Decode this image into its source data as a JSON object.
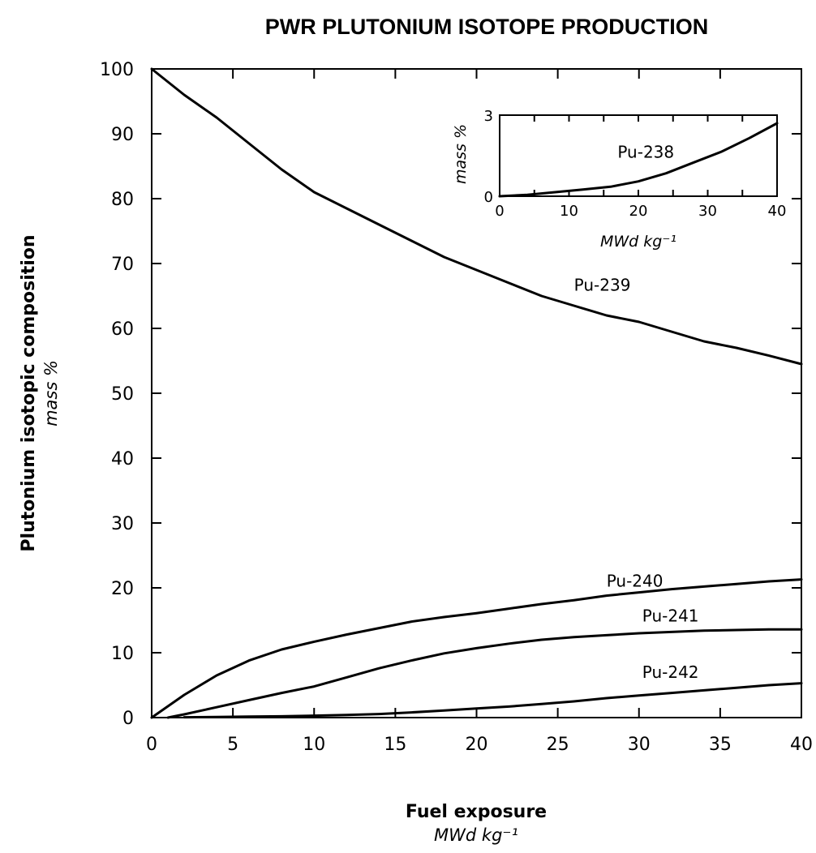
{
  "chart_data": [
    {
      "type": "line",
      "title": "PWR PLUTONIUM ISOTOPE PRODUCTION",
      "xlabel": "Fuel exposure",
      "xlabel_unit": "MWd kg⁻¹",
      "ylabel": "Plutonium isotopic composition",
      "ylabel_unit": "mass %",
      "xlim": [
        0,
        40
      ],
      "ylim": [
        0,
        100
      ],
      "x_ticks": [
        0,
        5,
        10,
        15,
        20,
        25,
        30,
        35,
        40
      ],
      "y_ticks": [
        0,
        10,
        20,
        30,
        40,
        50,
        60,
        70,
        80,
        90,
        100
      ],
      "grid": false,
      "legend": "none",
      "series": [
        {
          "name": "Pu-239",
          "x": [
            0,
            2,
            4,
            6,
            8,
            10,
            12,
            14,
            16,
            18,
            20,
            22,
            24,
            26,
            28,
            30,
            32,
            34,
            36,
            38,
            40
          ],
          "y": [
            100,
            96,
            92.5,
            88.5,
            84.5,
            81,
            78.5,
            76,
            73.5,
            71,
            69,
            67,
            65,
            63.5,
            62,
            61,
            59.5,
            58,
            57,
            55.8,
            54.5
          ]
        },
        {
          "name": "Pu-240",
          "x": [
            0,
            2,
            4,
            6,
            8,
            10,
            12,
            14,
            16,
            18,
            20,
            22,
            24,
            26,
            28,
            30,
            32,
            34,
            36,
            38,
            40
          ],
          "y": [
            0,
            3.5,
            6.5,
            8.8,
            10.5,
            11.7,
            12.8,
            13.8,
            14.8,
            15.5,
            16.1,
            16.8,
            17.5,
            18.1,
            18.8,
            19.3,
            19.8,
            20.2,
            20.6,
            21,
            21.3
          ]
        },
        {
          "name": "Pu-241",
          "x": [
            1,
            2,
            4,
            6,
            8,
            10,
            12,
            14,
            16,
            18,
            20,
            22,
            24,
            26,
            28,
            30,
            32,
            34,
            36,
            38,
            40
          ],
          "y": [
            0,
            0.5,
            1.6,
            2.7,
            3.8,
            4.8,
            6.2,
            7.6,
            8.8,
            9.9,
            10.7,
            11.4,
            12,
            12.4,
            12.7,
            13,
            13.2,
            13.4,
            13.5,
            13.6,
            13.6
          ]
        },
        {
          "name": "Pu-242",
          "x": [
            2,
            4,
            6,
            8,
            10,
            12,
            14,
            16,
            18,
            20,
            22,
            24,
            26,
            28,
            30,
            32,
            34,
            36,
            38,
            40
          ],
          "y": [
            0.05,
            0.1,
            0.15,
            0.2,
            0.3,
            0.4,
            0.55,
            0.8,
            1.1,
            1.4,
            1.7,
            2.1,
            2.5,
            3,
            3.4,
            3.8,
            4.2,
            4.6,
            5,
            5.3
          ]
        }
      ]
    },
    {
      "type": "line",
      "title": "",
      "xlabel": "MWd kg⁻¹",
      "ylabel": "mass %",
      "xlim": [
        0,
        40
      ],
      "ylim": [
        0,
        3
      ],
      "x_ticks": [
        0,
        10,
        20,
        30,
        40
      ],
      "y_ticks": [
        0,
        3
      ],
      "grid": false,
      "legend": "none",
      "series": [
        {
          "name": "Pu-238",
          "x": [
            0,
            4,
            8,
            12,
            16,
            20,
            24,
            28,
            32,
            36,
            40
          ],
          "y": [
            0,
            0.05,
            0.15,
            0.25,
            0.35,
            0.55,
            0.85,
            1.25,
            1.65,
            2.15,
            2.7
          ]
        }
      ]
    }
  ],
  "colors": {
    "ink": "#000000",
    "background": "#ffffff"
  }
}
